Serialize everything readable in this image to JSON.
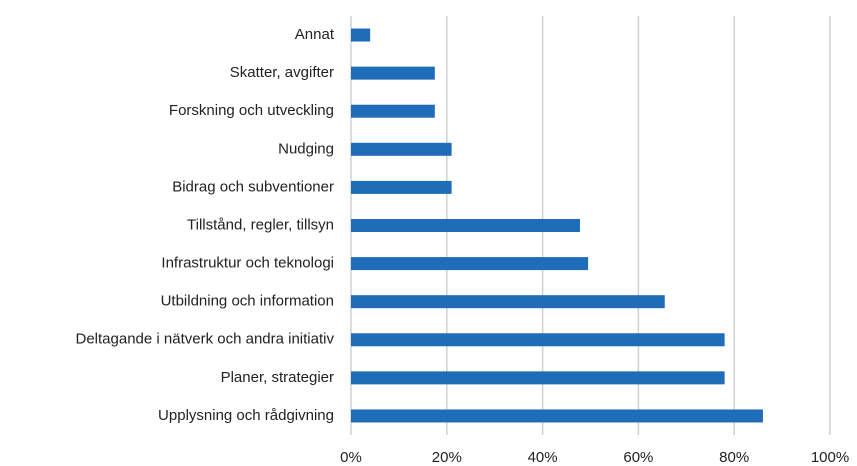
{
  "chart_data": {
    "type": "barh",
    "categories": [
      "Annat",
      "Skatter, avgifter",
      "Forskning och utveckling",
      "Nudging",
      "Bidrag och subventioner",
      "Tillstånd, regler, tillsyn",
      "Infrastruktur och teknologi",
      "Utbildning och information",
      "Deltagande i nätverk och andra initiativ",
      "Planer, strategier",
      "Upplysning och rådgivning"
    ],
    "values": [
      4,
      17.5,
      17.5,
      21,
      21,
      47.8,
      49.5,
      65.5,
      78,
      78,
      86
    ],
    "color": "#1f6db8",
    "xlim": [
      0,
      100
    ],
    "xticks": [
      {
        "value": 0,
        "label": "0%"
      },
      {
        "value": 20,
        "label": "20%"
      },
      {
        "value": 40,
        "label": "40%"
      },
      {
        "value": 60,
        "label": "60%"
      },
      {
        "value": 80,
        "label": "80%"
      },
      {
        "value": 100,
        "label": "100%"
      }
    ],
    "grid": true
  }
}
